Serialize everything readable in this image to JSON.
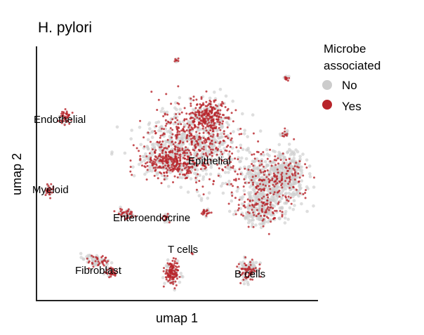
{
  "chart_data": {
    "type": "scatter",
    "title": "H. pylori",
    "xlabel": "umap 1",
    "ylabel": "umap 2",
    "legend": {
      "title": [
        "Microbe",
        "associated"
      ],
      "position": "top-right",
      "entries": [
        {
          "label": "No",
          "color": "#cccccc"
        },
        {
          "label": "Yes",
          "color": "#b8242a"
        }
      ]
    },
    "clusters": [
      {
        "label": "Endothelial"
      },
      {
        "label": "Myeloid"
      },
      {
        "label": "Epithelial"
      },
      {
        "label": "Enteroendocrine"
      },
      {
        "label": "T cells"
      },
      {
        "label": "Fibroblast"
      },
      {
        "label": "B cells"
      }
    ],
    "grid": false,
    "ticks": false
  }
}
